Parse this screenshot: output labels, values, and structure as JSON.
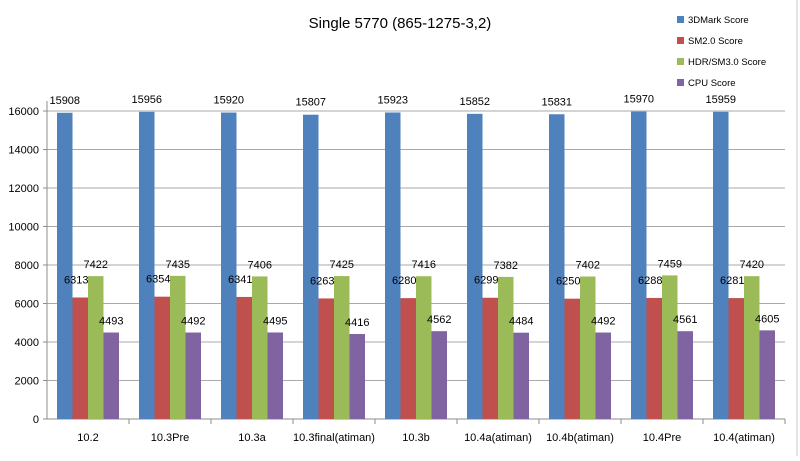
{
  "chart_data": {
    "type": "bar",
    "title": "Single 5770 (865-1275-3,2)",
    "xlabel": "",
    "ylabel": "",
    "ylim": [
      0,
      16000
    ],
    "yticks": [
      "0",
      "2000",
      "4000",
      "6000",
      "8000",
      "10000",
      "12000",
      "14000",
      "16000"
    ],
    "grid": true,
    "legend_position": "top-right",
    "categories": [
      "10.2",
      "10.3Pre",
      "10.3a",
      "10.3final(atiman)",
      "10.3b",
      "10.4a(atiman)",
      "10.4b(atiman)",
      "10.4Pre",
      "10.4(atiman)"
    ],
    "series": [
      {
        "name": "3DMark Score",
        "color": "#4f81bd",
        "values": [
          15908,
          15956,
          15920,
          15807,
          15923,
          15852,
          15831,
          15970,
          15959
        ]
      },
      {
        "name": "SM2.0 Score",
        "color": "#c0504d",
        "values": [
          6313,
          6354,
          6341,
          6263,
          6280,
          6299,
          6250,
          6288,
          6281
        ]
      },
      {
        "name": "HDR/SM3.0 Score",
        "color": "#9bbb59",
        "values": [
          7422,
          7435,
          7406,
          7425,
          7416,
          7382,
          7402,
          7459,
          7420
        ]
      },
      {
        "name": "CPU Score",
        "color": "#8064a2",
        "values": [
          4493,
          4492,
          4495,
          4416,
          4562,
          4484,
          4492,
          4561,
          4605
        ]
      }
    ]
  }
}
